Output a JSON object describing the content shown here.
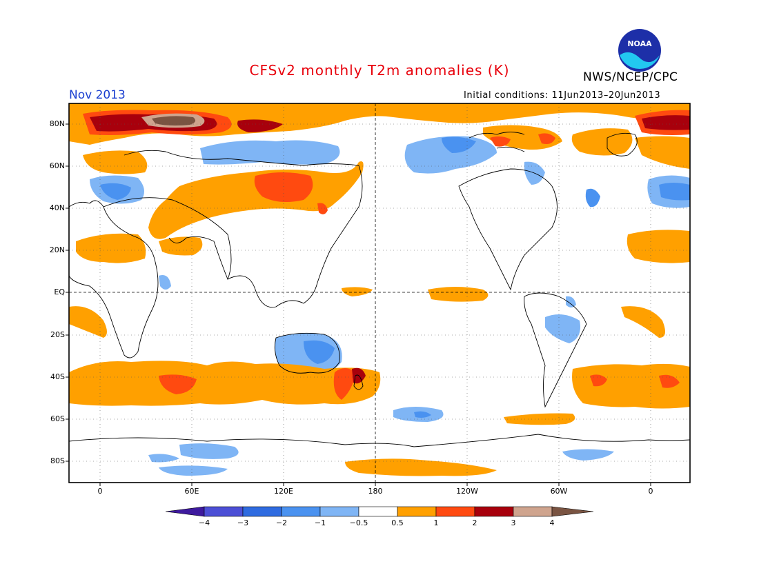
{
  "header": {
    "title": "CFSv2 monthly T2m anomalies (K)",
    "org": "NWS/NCEP/CPC",
    "month": "Nov 2013",
    "initial_conditions": "Initial conditions: 11Jun2013–20Jun2013",
    "logo_text": "NOAA"
  },
  "map": {
    "lat_labels": [
      "80N",
      "60N",
      "40N",
      "20N",
      "EQ",
      "20S",
      "40S",
      "60S",
      "80S"
    ],
    "lon_labels": [
      "0",
      "60E",
      "120E",
      "180",
      "120W",
      "60W",
      "0"
    ]
  },
  "colorbar": {
    "labels": [
      "−4",
      "−3",
      "−2",
      "−1",
      "−0.5",
      "0.5",
      "1",
      "2",
      "3",
      "4"
    ],
    "colors": [
      "#3e1a9e",
      "#4c4fd6",
      "#2f6be0",
      "#4a92f0",
      "#7fb5f5",
      "#ffffff",
      "#ffa000",
      "#ff4a10",
      "#a8000c",
      "#cfa48e",
      "#7a5442"
    ]
  }
}
